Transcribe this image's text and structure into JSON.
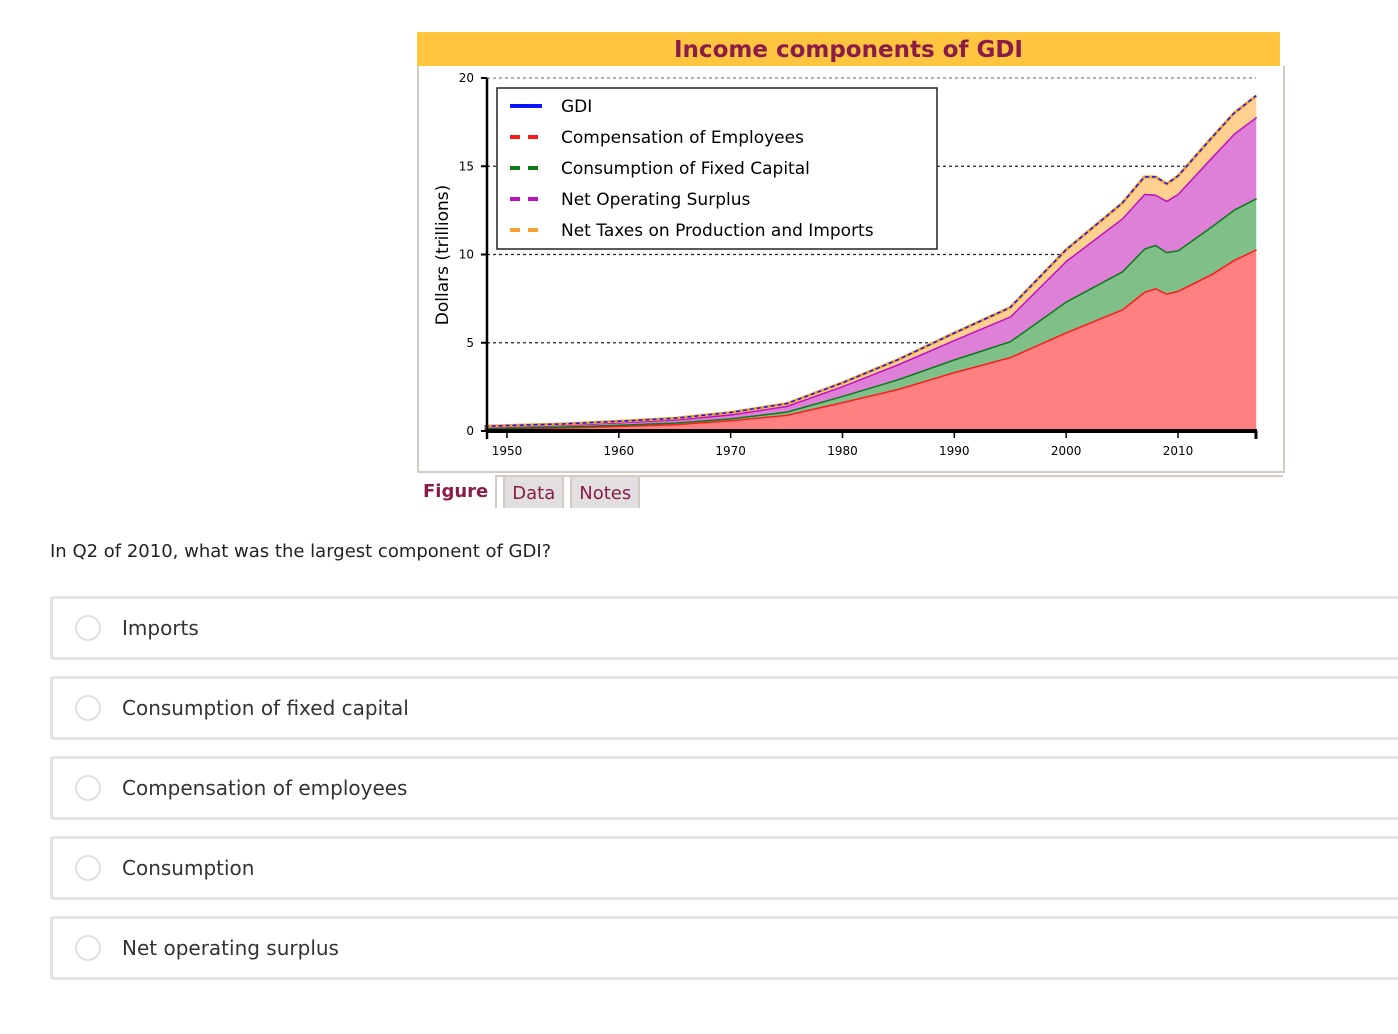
{
  "figure": {
    "title": "Income components of GDI",
    "tabs": [
      {
        "label": "Figure",
        "active": true
      },
      {
        "label": "Data",
        "active": false
      },
      {
        "label": "Notes",
        "active": false
      }
    ]
  },
  "chart_data": {
    "type": "area",
    "stacked": true,
    "title": "Income components of GDI",
    "xlabel": "",
    "ylabel": "Dollars (trillions)",
    "xlim": [
      1948,
      2017
    ],
    "ylim": [
      0,
      20
    ],
    "x_ticks": [
      "1950",
      "1960",
      "1970",
      "1980",
      "1990",
      "2000",
      "2010"
    ],
    "y_ticks": [
      "0",
      "5",
      "10",
      "15",
      "20"
    ],
    "grid": "horizontal dotted",
    "legend_position": "top-left",
    "x": [
      1948,
      1955,
      1960,
      1965,
      1970,
      1975,
      1980,
      1985,
      1990,
      1995,
      2000,
      2005,
      2007,
      2008,
      2009,
      2010,
      2013,
      2015,
      2017
    ],
    "series": [
      {
        "name": "Compensation of Employees",
        "color": "#ff1a1a",
        "fill": "#ff8080",
        "values": [
          0.14,
          0.21,
          0.3,
          0.4,
          0.62,
          0.93,
          1.65,
          2.4,
          3.35,
          4.2,
          5.6,
          6.9,
          7.9,
          8.1,
          7.8,
          7.95,
          8.9,
          9.7,
          10.3
        ]
      },
      {
        "name": "Consumption of Fixed Capital",
        "color": "#0a7a1a",
        "fill": "#7fbf88",
        "values": [
          0.03,
          0.05,
          0.07,
          0.09,
          0.11,
          0.18,
          0.35,
          0.55,
          0.72,
          0.9,
          1.75,
          2.15,
          2.45,
          2.45,
          2.35,
          2.3,
          2.7,
          2.85,
          2.9
        ]
      },
      {
        "name": "Net Operating Surplus",
        "color": "#c010c0",
        "fill": "#df80d8",
        "values": [
          0.07,
          0.1,
          0.13,
          0.17,
          0.22,
          0.32,
          0.55,
          0.85,
          1.1,
          1.4,
          2.3,
          3.0,
          3.1,
          2.85,
          2.9,
          3.2,
          3.9,
          4.3,
          4.6
        ]
      },
      {
        "name": "Net Taxes on Production and Imports",
        "color": "#f5a030",
        "fill": "#ffd08f",
        "values": [
          0.03,
          0.04,
          0.05,
          0.06,
          0.1,
          0.12,
          0.18,
          0.25,
          0.38,
          0.5,
          0.62,
          0.85,
          0.95,
          1.0,
          0.95,
          1.0,
          1.1,
          1.15,
          1.2
        ]
      }
    ],
    "total_series": {
      "name": "GDI",
      "color": "#0a14ff"
    }
  },
  "question": {
    "text": "In Q2 of 2010, what was the largest component of GDI?",
    "options": [
      {
        "label": "Imports",
        "selected": false
      },
      {
        "label": "Consumption of fixed capital",
        "selected": false
      },
      {
        "label": "Compensation of employees",
        "selected": false
      },
      {
        "label": "Consumption",
        "selected": false
      },
      {
        "label": "Net operating surplus",
        "selected": false
      }
    ]
  }
}
